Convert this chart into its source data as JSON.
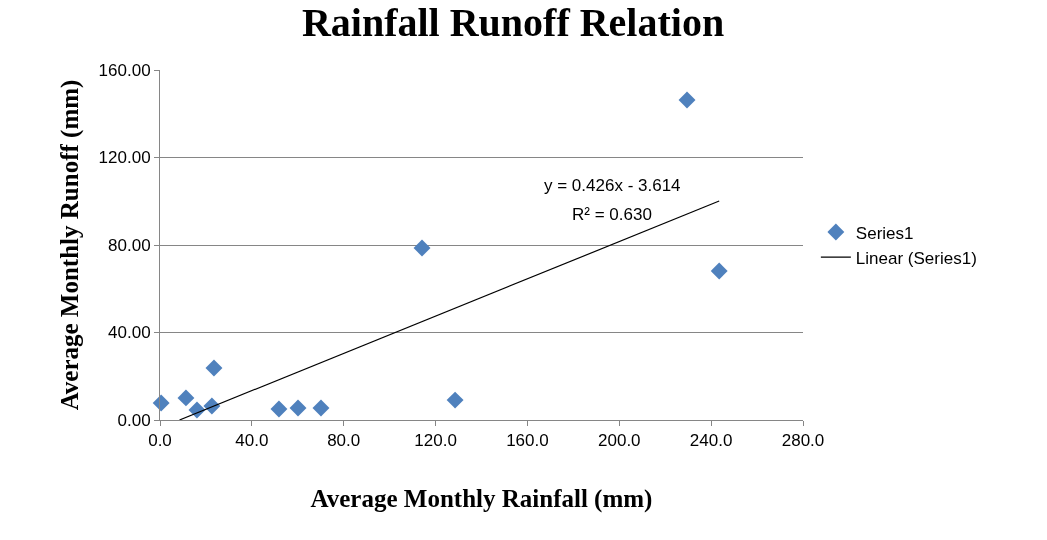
{
  "chart_data": {
    "type": "scatter",
    "title": "Rainfall Runoff Relation",
    "xlabel": "Average Monthly Rainfall (mm)",
    "ylabel": "Average Monthly Runoff (mm)",
    "x": [
      0.5,
      11.3,
      16.1,
      22.6,
      23.5,
      51.8,
      60.1,
      70.1,
      114.1,
      128.5,
      229.5,
      243.5
    ],
    "series": [
      {
        "name": "Series1",
        "color": "#4f81bd",
        "values": [
          7.8,
          10.1,
          4.6,
          6.4,
          23.8,
          5.0,
          5.5,
          5.5,
          78.6,
          9.1,
          146.3,
          68.1
        ]
      },
      {
        "name": "Linear (Series1)",
        "type": "line",
        "marker": "none",
        "color": "#000000",
        "x": [
          8.5,
          243.5
        ],
        "values": [
          0.0,
          100.1
        ]
      }
    ],
    "annotations": [
      "y = 0.426x - 3.614",
      "R² = 0.630"
    ],
    "xlim": [
      0,
      280
    ],
    "xticks": [
      {
        "value": 0,
        "label": "0.0"
      },
      {
        "value": 40,
        "label": "40.0"
      },
      {
        "value": 80,
        "label": "80.0"
      },
      {
        "value": 120,
        "label": "120.0"
      },
      {
        "value": 160,
        "label": "160.0"
      },
      {
        "value": 200,
        "label": "200.0"
      },
      {
        "value": 240,
        "label": "240.0"
      },
      {
        "value": 280,
        "label": "280.0"
      }
    ],
    "ylim": [
      0,
      160
    ],
    "yticks": [
      {
        "value": 0,
        "label": "0.00"
      },
      {
        "value": 40,
        "label": "40.00"
      },
      {
        "value": 80,
        "label": "80.00"
      },
      {
        "value": 120,
        "label": "120.00"
      },
      {
        "value": 160,
        "label": "160.00"
      }
    ],
    "grid": "y",
    "legend": "right",
    "marker": "diamond"
  }
}
